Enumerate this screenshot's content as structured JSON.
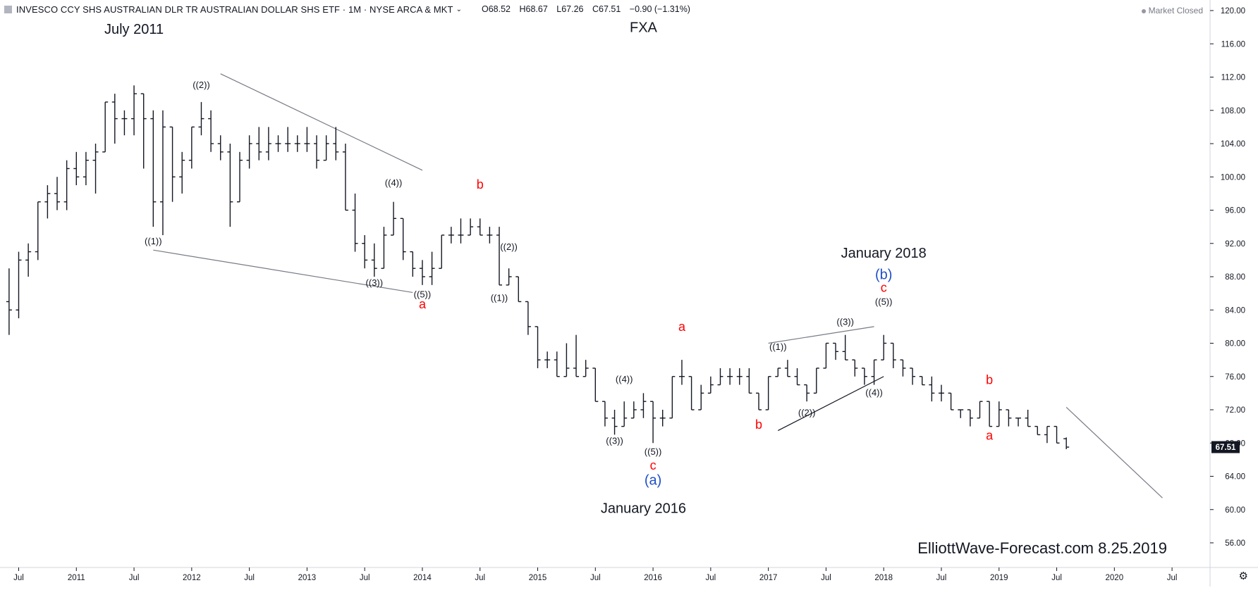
{
  "header": {
    "symbol": "INVESCO CCY SHS AUSTRALIAN DLR TR AUSTRALIAN DOLLAR SHS ETF · 1M · NYSE ARCA & MKT",
    "open": "O68.52",
    "high": "H68.67",
    "low": "L67.26",
    "close": "C67.51",
    "change": "−0.90 (−1.31%)",
    "market_status": "Market Closed"
  },
  "price_tag": "67.51",
  "watermark": "ElliottWave-Forecast.com 8.25.2019",
  "colors": {
    "bar": "#131722",
    "wave_red": "#ff0000",
    "wave_blue": "#1f4fc8",
    "gray_line": "#787b86",
    "axis": "#131722"
  },
  "chart_data": {
    "type": "ohlc-bar",
    "timeframe": "1M",
    "y_axis": {
      "ylim": [
        53,
        121
      ],
      "ticks": [
        "56.00",
        "60.00",
        "64.00",
        "68.00",
        "72.00",
        "76.00",
        "80.00",
        "84.00",
        "88.00",
        "92.00",
        "96.00",
        "100.00",
        "104.00",
        "108.00",
        "112.00",
        "116.00",
        "120.00"
      ]
    },
    "x_axis": {
      "ticks": [
        "Jul",
        "2011",
        "Jul",
        "2012",
        "Jul",
        "2013",
        "Jul",
        "2014",
        "Jul",
        "2015",
        "Jul",
        "2016",
        "Jul",
        "2017",
        "Jul",
        "2018",
        "Jul",
        "2019",
        "Jul",
        "2020",
        "Jul"
      ]
    },
    "bars": [
      {
        "d": "2010-06",
        "o": 85,
        "h": 89,
        "l": 81,
        "c": 84
      },
      {
        "d": "2010-07",
        "o": 84,
        "h": 91,
        "l": 83,
        "c": 90
      },
      {
        "d": "2010-08",
        "o": 90,
        "h": 92,
        "l": 88,
        "c": 91
      },
      {
        "d": "2010-09",
        "o": 91,
        "h": 97,
        "l": 90,
        "c": 97
      },
      {
        "d": "2010-10",
        "o": 97,
        "h": 99,
        "l": 95,
        "c": 98
      },
      {
        "d": "2010-11",
        "o": 98,
        "h": 100,
        "l": 96,
        "c": 97
      },
      {
        "d": "2010-12",
        "o": 97,
        "h": 102,
        "l": 96,
        "c": 101
      },
      {
        "d": "2011-01",
        "o": 101,
        "h": 103,
        "l": 99,
        "c": 100
      },
      {
        "d": "2011-02",
        "o": 100,
        "h": 103,
        "l": 99,
        "c": 102
      },
      {
        "d": "2011-03",
        "o": 102,
        "h": 104,
        "l": 98,
        "c": 103
      },
      {
        "d": "2011-04",
        "o": 103,
        "h": 109,
        "l": 103,
        "c": 109
      },
      {
        "d": "2011-05",
        "o": 109,
        "h": 110,
        "l": 104,
        "c": 107
      },
      {
        "d": "2011-06",
        "o": 107,
        "h": 108,
        "l": 105,
        "c": 107
      },
      {
        "d": "2011-07",
        "o": 107,
        "h": 111,
        "l": 105,
        "c": 110
      },
      {
        "d": "2011-08",
        "o": 110,
        "h": 110,
        "l": 101,
        "c": 107
      },
      {
        "d": "2011-09",
        "o": 107,
        "h": 108,
        "l": 94,
        "c": 97
      },
      {
        "d": "2011-10",
        "o": 97,
        "h": 108,
        "l": 93,
        "c": 106
      },
      {
        "d": "2011-11",
        "o": 106,
        "h": 106,
        "l": 97,
        "c": 100
      },
      {
        "d": "2011-12",
        "o": 100,
        "h": 103,
        "l": 98,
        "c": 102
      },
      {
        "d": "2012-01",
        "o": 102,
        "h": 106,
        "l": 101,
        "c": 106
      },
      {
        "d": "2012-02",
        "o": 106,
        "h": 109,
        "l": 105,
        "c": 107
      },
      {
        "d": "2012-03",
        "o": 107,
        "h": 108,
        "l": 103,
        "c": 104
      },
      {
        "d": "2012-04",
        "o": 104,
        "h": 105,
        "l": 102,
        "c": 103
      },
      {
        "d": "2012-05",
        "o": 103,
        "h": 104,
        "l": 94,
        "c": 97
      },
      {
        "d": "2012-06",
        "o": 97,
        "h": 103,
        "l": 97,
        "c": 102
      },
      {
        "d": "2012-07",
        "o": 102,
        "h": 105,
        "l": 101,
        "c": 104
      },
      {
        "d": "2012-08",
        "o": 104,
        "h": 106,
        "l": 102,
        "c": 103
      },
      {
        "d": "2012-09",
        "o": 103,
        "h": 106,
        "l": 102,
        "c": 104
      },
      {
        "d": "2012-10",
        "o": 104,
        "h": 105,
        "l": 103,
        "c": 104
      },
      {
        "d": "2012-11",
        "o": 104,
        "h": 106,
        "l": 103,
        "c": 104
      },
      {
        "d": "2012-12",
        "o": 104,
        "h": 105,
        "l": 103,
        "c": 104
      },
      {
        "d": "2013-01",
        "o": 104,
        "h": 106,
        "l": 103,
        "c": 104
      },
      {
        "d": "2013-02",
        "o": 104,
        "h": 105,
        "l": 101,
        "c": 102
      },
      {
        "d": "2013-03",
        "o": 102,
        "h": 105,
        "l": 102,
        "c": 104
      },
      {
        "d": "2013-04",
        "o": 104,
        "h": 106,
        "l": 102,
        "c": 103
      },
      {
        "d": "2013-05",
        "o": 103,
        "h": 104,
        "l": 96,
        "c": 96
      },
      {
        "d": "2013-06",
        "o": 96,
        "h": 98,
        "l": 91,
        "c": 92
      },
      {
        "d": "2013-07",
        "o": 92,
        "h": 93,
        "l": 89,
        "c": 90
      },
      {
        "d": "2013-08",
        "o": 90,
        "h": 92,
        "l": 88,
        "c": 89
      },
      {
        "d": "2013-09",
        "o": 89,
        "h": 94,
        "l": 89,
        "c": 93
      },
      {
        "d": "2013-10",
        "o": 93,
        "h": 97,
        "l": 93,
        "c": 95
      },
      {
        "d": "2013-11",
        "o": 95,
        "h": 95,
        "l": 90,
        "c": 91
      },
      {
        "d": "2013-12",
        "o": 91,
        "h": 91,
        "l": 88,
        "c": 89
      },
      {
        "d": "2014-01",
        "o": 89,
        "h": 90,
        "l": 87,
        "c": 88
      },
      {
        "d": "2014-02",
        "o": 88,
        "h": 91,
        "l": 87,
        "c": 89
      },
      {
        "d": "2014-03",
        "o": 89,
        "h": 93,
        "l": 89,
        "c": 93
      },
      {
        "d": "2014-04",
        "o": 93,
        "h": 94,
        "l": 92,
        "c": 93
      },
      {
        "d": "2014-05",
        "o": 93,
        "h": 95,
        "l": 92,
        "c": 93
      },
      {
        "d": "2014-06",
        "o": 93,
        "h": 95,
        "l": 93,
        "c": 94
      },
      {
        "d": "2014-07",
        "o": 94,
        "h": 95,
        "l": 93,
        "c": 93
      },
      {
        "d": "2014-08",
        "o": 93,
        "h": 94,
        "l": 92,
        "c": 93
      },
      {
        "d": "2014-09",
        "o": 93,
        "h": 94,
        "l": 87,
        "c": 87
      },
      {
        "d": "2014-10",
        "o": 87,
        "h": 89,
        "l": 87,
        "c": 88
      },
      {
        "d": "2014-11",
        "o": 88,
        "h": 88,
        "l": 85,
        "c": 85
      },
      {
        "d": "2014-12",
        "o": 85,
        "h": 85,
        "l": 81,
        "c": 82
      },
      {
        "d": "2015-01",
        "o": 82,
        "h": 82,
        "l": 77,
        "c": 78
      },
      {
        "d": "2015-02",
        "o": 78,
        "h": 79,
        "l": 77,
        "c": 78
      },
      {
        "d": "2015-03",
        "o": 78,
        "h": 79,
        "l": 76,
        "c": 76
      },
      {
        "d": "2015-04",
        "o": 76,
        "h": 80,
        "l": 76,
        "c": 77
      },
      {
        "d": "2015-05",
        "o": 77,
        "h": 81,
        "l": 76,
        "c": 76
      },
      {
        "d": "2015-06",
        "o": 76,
        "h": 78,
        "l": 76,
        "c": 77
      },
      {
        "d": "2015-07",
        "o": 77,
        "h": 77,
        "l": 73,
        "c": 73
      },
      {
        "d": "2015-08",
        "o": 73,
        "h": 73,
        "l": 70,
        "c": 71
      },
      {
        "d": "2015-09",
        "o": 71,
        "h": 72,
        "l": 69,
        "c": 70
      },
      {
        "d": "2015-10",
        "o": 70,
        "h": 73,
        "l": 70,
        "c": 71
      },
      {
        "d": "2015-11",
        "o": 71,
        "h": 73,
        "l": 71,
        "c": 72
      },
      {
        "d": "2015-12",
        "o": 72,
        "h": 74,
        "l": 71,
        "c": 73
      },
      {
        "d": "2016-01",
        "o": 73,
        "h": 73,
        "l": 68,
        "c": 71
      },
      {
        "d": "2016-02",
        "o": 71,
        "h": 72,
        "l": 70,
        "c": 71
      },
      {
        "d": "2016-03",
        "o": 71,
        "h": 76,
        "l": 71,
        "c": 76
      },
      {
        "d": "2016-04",
        "o": 76,
        "h": 78,
        "l": 75,
        "c": 76
      },
      {
        "d": "2016-05",
        "o": 76,
        "h": 76,
        "l": 72,
        "c": 72
      },
      {
        "d": "2016-06",
        "o": 72,
        "h": 75,
        "l": 72,
        "c": 74
      },
      {
        "d": "2016-07",
        "o": 74,
        "h": 76,
        "l": 74,
        "c": 75
      },
      {
        "d": "2016-08",
        "o": 75,
        "h": 77,
        "l": 75,
        "c": 76
      },
      {
        "d": "2016-09",
        "o": 76,
        "h": 77,
        "l": 75,
        "c": 76
      },
      {
        "d": "2016-10",
        "o": 76,
        "h": 77,
        "l": 75,
        "c": 76
      },
      {
        "d": "2016-11",
        "o": 76,
        "h": 77,
        "l": 74,
        "c": 74
      },
      {
        "d": "2016-12",
        "o": 74,
        "h": 74,
        "l": 72,
        "c": 72
      },
      {
        "d": "2017-01",
        "o": 72,
        "h": 76,
        "l": 72,
        "c": 76
      },
      {
        "d": "2017-02",
        "o": 76,
        "h": 77,
        "l": 76,
        "c": 77
      },
      {
        "d": "2017-03",
        "o": 77,
        "h": 78,
        "l": 76,
        "c": 76
      },
      {
        "d": "2017-04",
        "o": 76,
        "h": 77,
        "l": 75,
        "c": 75
      },
      {
        "d": "2017-05",
        "o": 75,
        "h": 75,
        "l": 73,
        "c": 74
      },
      {
        "d": "2017-06",
        "o": 74,
        "h": 77,
        "l": 74,
        "c": 77
      },
      {
        "d": "2017-07",
        "o": 77,
        "h": 80,
        "l": 77,
        "c": 80
      },
      {
        "d": "2017-08",
        "o": 80,
        "h": 80,
        "l": 78,
        "c": 79
      },
      {
        "d": "2017-09",
        "o": 79,
        "h": 81,
        "l": 78,
        "c": 78
      },
      {
        "d": "2017-10",
        "o": 78,
        "h": 78,
        "l": 76,
        "c": 77
      },
      {
        "d": "2017-11",
        "o": 77,
        "h": 77,
        "l": 75,
        "c": 76
      },
      {
        "d": "2017-12",
        "o": 76,
        "h": 78,
        "l": 75,
        "c": 78
      },
      {
        "d": "2018-01",
        "o": 78,
        "h": 81,
        "l": 78,
        "c": 80
      },
      {
        "d": "2018-02",
        "o": 80,
        "h": 80,
        "l": 77,
        "c": 78
      },
      {
        "d": "2018-03",
        "o": 78,
        "h": 78,
        "l": 76,
        "c": 77
      },
      {
        "d": "2018-04",
        "o": 77,
        "h": 77,
        "l": 75,
        "c": 76
      },
      {
        "d": "2018-05",
        "o": 76,
        "h": 76,
        "l": 75,
        "c": 75
      },
      {
        "d": "2018-06",
        "o": 75,
        "h": 76,
        "l": 73,
        "c": 74
      },
      {
        "d": "2018-07",
        "o": 74,
        "h": 75,
        "l": 73,
        "c": 74
      },
      {
        "d": "2018-08",
        "o": 74,
        "h": 74,
        "l": 72,
        "c": 72
      },
      {
        "d": "2018-09",
        "o": 72,
        "h": 72,
        "l": 71,
        "c": 72
      },
      {
        "d": "2018-10",
        "o": 72,
        "h": 72,
        "l": 70,
        "c": 71
      },
      {
        "d": "2018-11",
        "o": 71,
        "h": 73,
        "l": 71,
        "c": 73
      },
      {
        "d": "2018-12",
        "o": 73,
        "h": 73,
        "l": 70,
        "c": 70
      },
      {
        "d": "2019-01",
        "o": 70,
        "h": 73,
        "l": 70,
        "c": 72
      },
      {
        "d": "2019-02",
        "o": 72,
        "h": 72,
        "l": 70,
        "c": 71
      },
      {
        "d": "2019-03",
        "o": 71,
        "h": 71,
        "l": 70,
        "c": 71
      },
      {
        "d": "2019-04",
        "o": 71,
        "h": 72,
        "l": 70,
        "c": 70
      },
      {
        "d": "2019-05",
        "o": 70,
        "h": 70,
        "l": 69,
        "c": 69
      },
      {
        "d": "2019-06",
        "o": 69,
        "h": 70,
        "l": 68,
        "c": 70
      },
      {
        "d": "2019-07",
        "o": 70,
        "h": 70,
        "l": 68,
        "c": 68
      },
      {
        "d": "2019-08",
        "o": 68.52,
        "h": 68.67,
        "l": 67.26,
        "c": 67.51
      }
    ],
    "annotations": [
      {
        "text": "July 2011",
        "d": "2011-07",
        "v": 117.2,
        "color": "#131722",
        "size": 20
      },
      {
        "text": "FXA",
        "d": "2015-12",
        "v": 117.4,
        "color": "#131722",
        "size": 20
      },
      {
        "text": "((2))",
        "d": "2012-02",
        "v": 110.7,
        "color": "#131722",
        "size": 13
      },
      {
        "text": "((1))",
        "d": "2011-09",
        "v": 91.9,
        "color": "#131722",
        "size": 13
      },
      {
        "text": "((4))",
        "d": "2013-10",
        "v": 98.9,
        "color": "#131722",
        "size": 13
      },
      {
        "text": "((3))",
        "d": "2013-08",
        "v": 86.9,
        "color": "#131722",
        "size": 13
      },
      {
        "text": "((5))",
        "d": "2014-01",
        "v": 85.5,
        "color": "#131722",
        "size": 13
      },
      {
        "text": "a",
        "d": "2014-01",
        "v": 84.2,
        "color": "#ff0000",
        "size": 18
      },
      {
        "text": "b",
        "d": "2014-07",
        "v": 98.6,
        "color": "#ff0000",
        "size": 18
      },
      {
        "text": "((2))",
        "d": "2014-10",
        "v": 91.2,
        "color": "#131722",
        "size": 13
      },
      {
        "text": "((1))",
        "d": "2014-09",
        "v": 85.1,
        "color": "#131722",
        "size": 13
      },
      {
        "text": "((4))",
        "d": "2015-10",
        "v": 75.3,
        "color": "#131722",
        "size": 13
      },
      {
        "text": "((3))",
        "d": "2015-09",
        "v": 67.9,
        "color": "#131722",
        "size": 13
      },
      {
        "text": "((5))",
        "d": "2016-01",
        "v": 66.6,
        "color": "#131722",
        "size": 13
      },
      {
        "text": "c",
        "d": "2016-01",
        "v": 64.8,
        "color": "#ff0000",
        "size": 18
      },
      {
        "text": "(a)",
        "d": "2016-01",
        "v": 63.0,
        "color": "#1f4fc8",
        "size": 20
      },
      {
        "text": "January 2016",
        "d": "2015-12",
        "v": 59.6,
        "color": "#131722",
        "size": 20
      },
      {
        "text": "a",
        "d": "2016-04",
        "v": 81.5,
        "color": "#ff0000",
        "size": 18
      },
      {
        "text": "b",
        "d": "2016-12",
        "v": 69.7,
        "color": "#ff0000",
        "size": 18
      },
      {
        "text": "((1))",
        "d": "2017-02",
        "v": 79.2,
        "color": "#131722",
        "size": 13
      },
      {
        "text": "((2))",
        "d": "2017-05",
        "v": 71.3,
        "color": "#131722",
        "size": 13
      },
      {
        "text": "((3))",
        "d": "2017-09",
        "v": 82.2,
        "color": "#131722",
        "size": 13
      },
      {
        "text": "((4))",
        "d": "2017-12",
        "v": 73.7,
        "color": "#131722",
        "size": 13
      },
      {
        "text": "((5))",
        "d": "2018-01",
        "v": 84.6,
        "color": "#131722",
        "size": 13
      },
      {
        "text": "c",
        "d": "2018-01",
        "v": 86.2,
        "color": "#ff0000",
        "size": 18
      },
      {
        "text": "(b)",
        "d": "2018-01",
        "v": 87.7,
        "color": "#1f4fc8",
        "size": 20
      },
      {
        "text": "January 2018",
        "d": "2018-01",
        "v": 90.3,
        "color": "#131722",
        "size": 20
      },
      {
        "text": "b",
        "d": "2018-12",
        "v": 75.1,
        "color": "#ff0000",
        "size": 18
      },
      {
        "text": "a",
        "d": "2018-12",
        "v": 68.4,
        "color": "#ff0000",
        "size": 18
      }
    ],
    "trendlines": [
      {
        "from": {
          "d": "2012-04",
          "v": 112.4
        },
        "to": {
          "d": "2014-01",
          "v": 100.8
        },
        "color": "#787b86"
      },
      {
        "from": {
          "d": "2011-09",
          "v": 91.2
        },
        "to": {
          "d": "2013-12",
          "v": 86.1
        },
        "color": "#787b86"
      },
      {
        "from": {
          "d": "2017-01",
          "v": 80.0
        },
        "to": {
          "d": "2017-12",
          "v": 82.0
        },
        "color": "#787b86"
      },
      {
        "from": {
          "d": "2017-02",
          "v": 69.5
        },
        "to": {
          "d": "2018-01",
          "v": 76.0
        },
        "color": "#131722"
      },
      {
        "from": {
          "d": "2019-08",
          "v": 72.3
        },
        "to": {
          "d": "2020-06",
          "v": 61.4
        },
        "color": "#787b86"
      }
    ]
  }
}
